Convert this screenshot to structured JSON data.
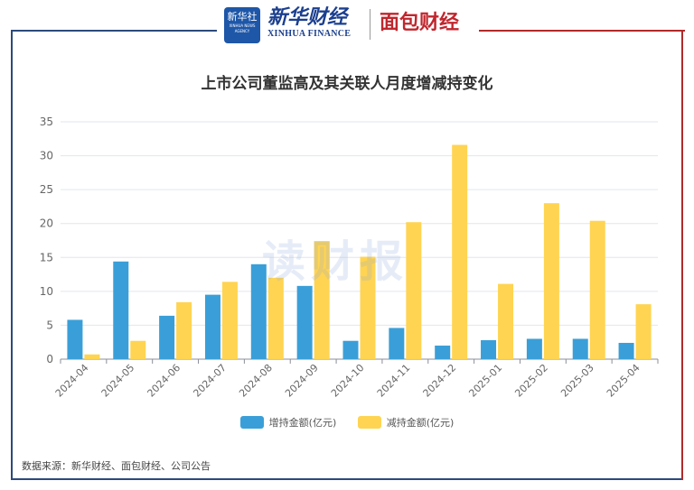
{
  "header": {
    "logo_box_text": "新华社",
    "logo_box_sub": "XINHUA NEWS AGENCY",
    "xinhua_cn": "新华财经",
    "xinhua_en": "XINHUA FINANCE",
    "mianbao": "面包财经"
  },
  "watermark": "读财报",
  "source": "数据来源：新华财经、面包财经、公司公告",
  "colors": {
    "increase": "#3a9fd8",
    "decrease": "#ffd452",
    "frame_left": "#2b4a7c",
    "frame_right": "#b02a2a"
  },
  "chart_data": {
    "type": "bar",
    "title": "上市公司董监高及其关联人月度增减持变化",
    "categories": [
      "2024-04",
      "2024-05",
      "2024-06",
      "2024-07",
      "2024-08",
      "2024-09",
      "2024-10",
      "2024-11",
      "2024-12",
      "2025-01",
      "2025-02",
      "2025-03",
      "2025-04"
    ],
    "series": [
      {
        "name": "增持金额(亿元)",
        "values": [
          5.8,
          14.4,
          6.4,
          9.5,
          14.0,
          10.8,
          2.7,
          4.6,
          2.0,
          2.8,
          3.0,
          3.0,
          2.4
        ]
      },
      {
        "name": "减持金额(亿元)",
        "values": [
          0.7,
          2.7,
          8.4,
          11.4,
          12.0,
          17.4,
          15.1,
          20.2,
          31.6,
          11.1,
          23.0,
          20.4,
          8.1
        ]
      }
    ],
    "ylim": [
      0,
      35
    ],
    "yticks": [
      0,
      5,
      10,
      15,
      20,
      25,
      30,
      35
    ],
    "grid": true,
    "legend_position": "bottom"
  }
}
